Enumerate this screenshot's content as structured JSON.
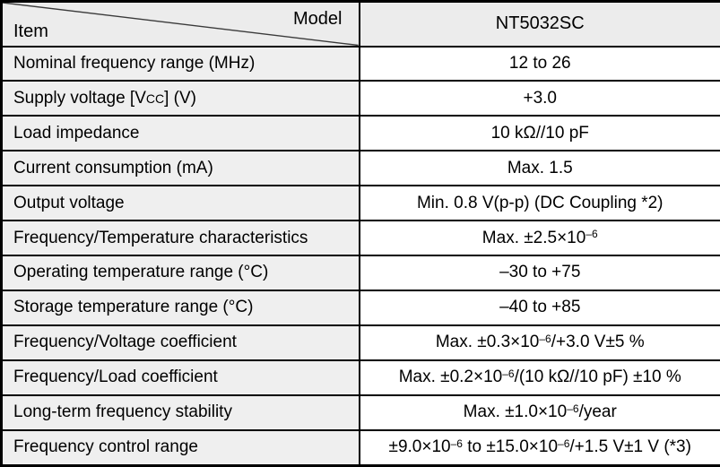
{
  "table": {
    "corner": {
      "top_right_label": "Model",
      "bottom_left_label": "Item"
    },
    "model_header": "NT5032SC",
    "rows": [
      {
        "item": "Nominal frequency range (MHz)",
        "value": "12 to 26"
      },
      {
        "item_parts": [
          {
            "t": "Supply voltage [V"
          },
          {
            "t": "CC",
            "small": true
          },
          {
            "t": "] (V)"
          }
        ],
        "value": "+3.0"
      },
      {
        "item": "Load impedance",
        "value": "10 kΩ//10 pF"
      },
      {
        "item": "Current consumption (mA)",
        "value": "Max. 1.5"
      },
      {
        "item": "Output voltage",
        "value": "Min. 0.8 V(p-p) (DC Coupling  *2)"
      },
      {
        "item": "Frequency/Temperature characteristics",
        "value_parts": [
          {
            "t": "Max. ±2.5×10"
          },
          {
            "t": "–6",
            "sup": true
          }
        ]
      },
      {
        "item": "Operating temperature range (°C)",
        "value": "–30 to +75"
      },
      {
        "item": "Storage temperature range (°C)",
        "value": "–40 to +85"
      },
      {
        "item": "Frequency/Voltage coefficient",
        "value_parts": [
          {
            "t": "Max. ±0.3×10"
          },
          {
            "t": "–6",
            "sup": true
          },
          {
            "t": "/+3.0 V±5 %"
          }
        ]
      },
      {
        "item": "Frequency/Load coefficient",
        "value_parts": [
          {
            "t": "Max. ±0.2×10"
          },
          {
            "t": "–6",
            "sup": true
          },
          {
            "t": "/(10 kΩ//10 pF) ±10 %"
          }
        ]
      },
      {
        "item": "Long-term frequency stability",
        "value_parts": [
          {
            "t": "Max. ±1.0×10"
          },
          {
            "t": "–6",
            "sup": true
          },
          {
            "t": "/year"
          }
        ]
      },
      {
        "item": "Frequency control range",
        "value_parts": [
          {
            "t": "±9.0×10"
          },
          {
            "t": "–6",
            "sup": true
          },
          {
            "t": " to ±15.0×10"
          },
          {
            "t": "–6",
            "sup": true
          },
          {
            "t": "/+1.5 V±1 V  (*3)"
          }
        ]
      }
    ],
    "colors": {
      "header_bg": "#ececec",
      "item_bg": "#efefef",
      "value_bg": "#ffffff",
      "border": "#000000",
      "text": "#000000"
    }
  }
}
